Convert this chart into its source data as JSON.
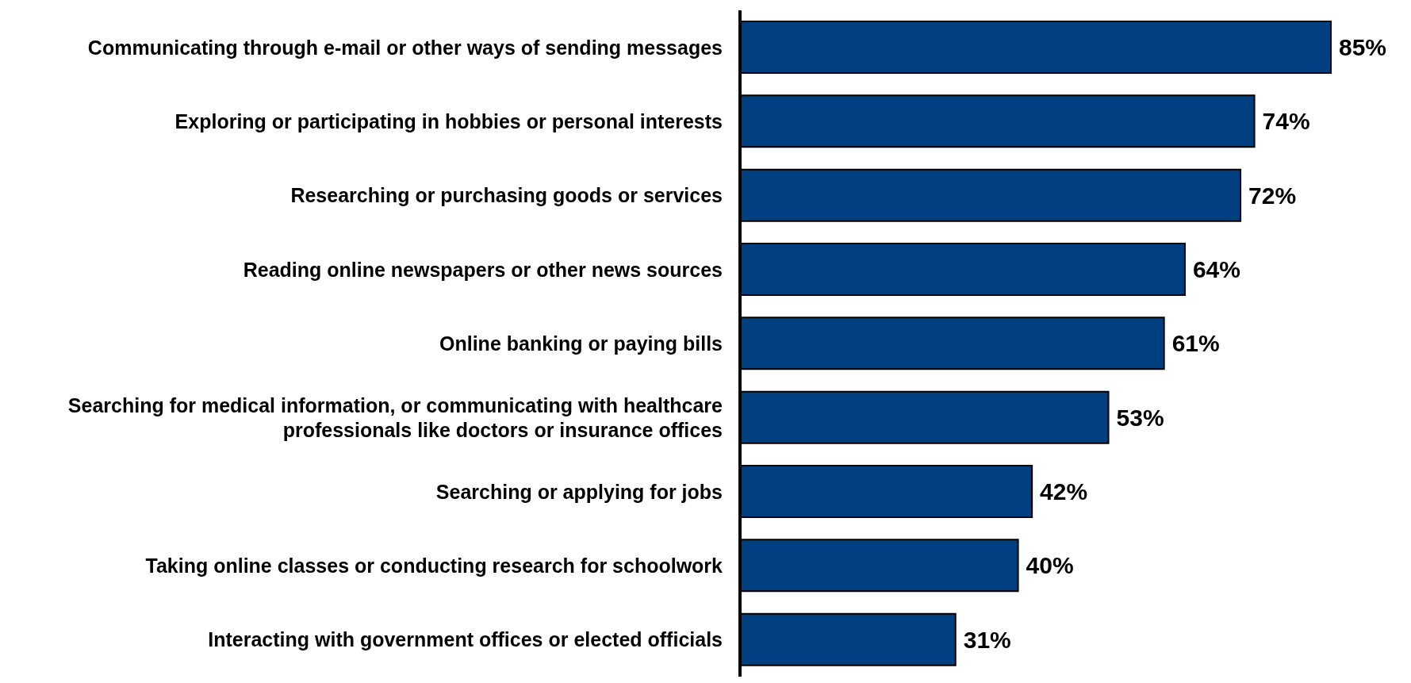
{
  "chart_data": {
    "type": "bar",
    "orientation": "horizontal",
    "categories": [
      "Communicating through e-mail or other ways of sending messages",
      "Exploring or participating in hobbies or personal interests",
      "Researching or purchasing goods or services",
      "Reading online newspapers or other news sources",
      "Online banking or paying bills",
      "Searching for medical information, or communicating with healthcare professionals like doctors or insurance offices",
      "Searching or applying for jobs",
      "Taking online classes or conducting research for schoolwork",
      "Interacting with government offices or elected officials"
    ],
    "values": [
      85,
      74,
      72,
      64,
      61,
      53,
      42,
      40,
      31
    ],
    "value_labels": [
      "85%",
      "74%",
      "72%",
      "64%",
      "61%",
      "53%",
      "42%",
      "40%",
      "31%"
    ],
    "color": "#003f80"
  }
}
